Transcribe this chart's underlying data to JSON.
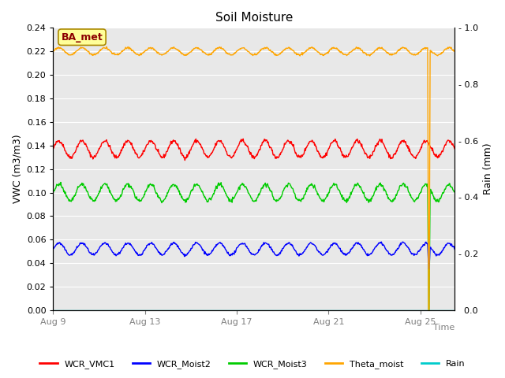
{
  "title": "Soil Moisture",
  "xlabel": "Time",
  "ylabel_left": "VWC (m3/m3)",
  "ylabel_right": "Rain (mm)",
  "ylim_left": [
    0.0,
    0.24
  ],
  "ylim_right": [
    0.0,
    1.0
  ],
  "yticks_left": [
    0.0,
    0.02,
    0.04,
    0.06,
    0.08,
    0.1,
    0.12,
    0.14,
    0.16,
    0.18,
    0.2,
    0.22,
    0.24
  ],
  "yticks_right": [
    0.0,
    0.2,
    0.4,
    0.6,
    0.8,
    1.0
  ],
  "xtick_positions": [
    0,
    4,
    8,
    12,
    16
  ],
  "xtick_labels": [
    "Aug 9",
    "Aug 13",
    "Aug 17",
    "Aug 21",
    "Aug 25"
  ],
  "total_days": 17.5,
  "bg_color": "#e8e8e8",
  "fig_color": "#ffffff",
  "series": [
    {
      "name": "WCR_VMC1",
      "color": "#ff0000",
      "base": 0.137,
      "amp": 0.007,
      "noise": 0.0008
    },
    {
      "name": "WCR_Moist2",
      "color": "#0000ff",
      "base": 0.052,
      "amp": 0.005,
      "noise": 0.0005
    },
    {
      "name": "WCR_Moist3",
      "color": "#00cc00",
      "base": 0.1,
      "amp": 0.007,
      "noise": 0.0008
    },
    {
      "name": "Theta_moist",
      "color": "#ffa500",
      "base": 0.22,
      "amp": 0.003,
      "noise": 0.0004
    },
    {
      "name": "Rain",
      "color": "#00cccc",
      "base": 0.0,
      "amp": 0.0,
      "noise": 0.0
    }
  ],
  "spike_day": 16.3,
  "station_label": "BA_met",
  "station_label_color": "#8b0000",
  "station_label_bg": "#ffff99",
  "station_label_border": "#aa8800",
  "legend_items": [
    {
      "label": "WCR_VMC1",
      "color": "#ff0000"
    },
    {
      "label": "WCR_Moist2",
      "color": "#0000ff"
    },
    {
      "label": "WCR_Moist3",
      "color": "#00cc00"
    },
    {
      "label": "Theta_moist",
      "color": "#ffa500"
    },
    {
      "label": "Rain",
      "color": "#00cccc"
    }
  ],
  "n_points": 800,
  "grid_color": "#ffffff",
  "title_fontsize": 11,
  "label_fontsize": 9,
  "tick_fontsize": 8
}
